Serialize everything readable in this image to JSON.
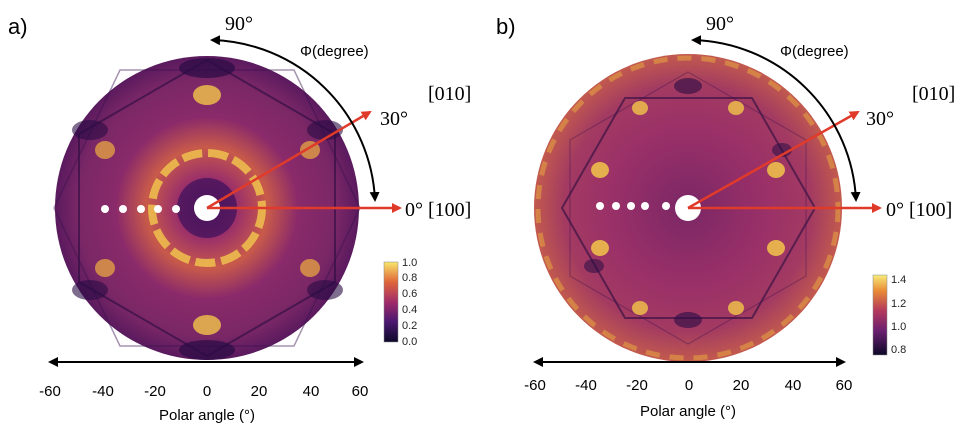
{
  "panels": [
    {
      "label": "a)",
      "phi_top": "90°",
      "phi_axis_label": "Φ(degree)",
      "dir_010": "[010]",
      "angle_30": "30°",
      "dir_100": "0° [100]",
      "colorbar_ticks": [
        "1.0",
        "0.8",
        "0.6",
        "0.4",
        "0.2",
        "0.0"
      ],
      "colorbar_range": [
        0.0,
        1.0
      ],
      "x_ticks": [
        "-60",
        "-40",
        "-20",
        "0",
        "20",
        "40",
        "60"
      ],
      "x_label": "Polar angle (°)",
      "colors": {
        "low": "#1a0b3d",
        "mid": "#8a2a6a",
        "high": "#f2d64b",
        "arrow": "#e03a2a"
      }
    },
    {
      "label": "b)",
      "phi_top": "90°",
      "phi_axis_label": "Φ(degree)",
      "dir_010": "[010]",
      "angle_30": "30°",
      "dir_100": "0° [100]",
      "colorbar_ticks": [
        "1.4",
        "1.2",
        "1.0",
        "0.8"
      ],
      "colorbar_range": [
        0.8,
        1.4
      ],
      "x_ticks": [
        "-60",
        "-40",
        "-20",
        "0",
        "20",
        "40",
        "60"
      ],
      "x_label": "Polar angle (°)",
      "colors": {
        "low": "#1a0b3d",
        "mid": "#8a2a6a",
        "high": "#f2d64b",
        "arrow": "#e03a2a"
      }
    }
  ]
}
